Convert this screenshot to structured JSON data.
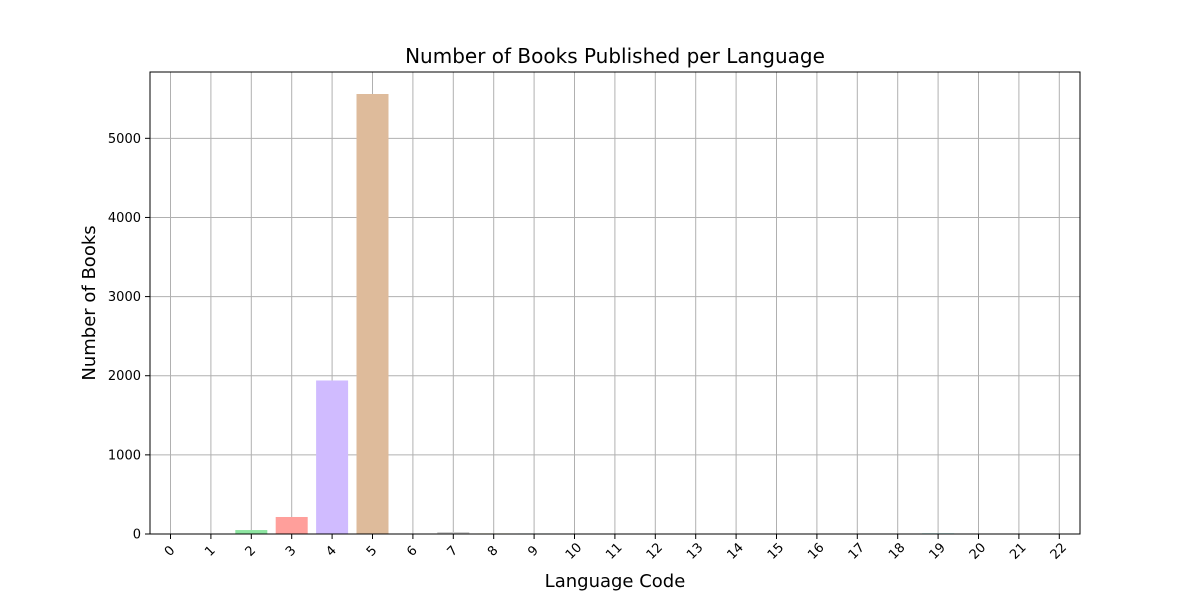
{
  "chart_data": {
    "type": "bar",
    "title": "Number of Books Published per Language",
    "xlabel": "Language Code",
    "ylabel": "Number of Books",
    "categories": [
      "0",
      "1",
      "2",
      "3",
      "4",
      "5",
      "6",
      "7",
      "8",
      "9",
      "10",
      "11",
      "12",
      "13",
      "14",
      "15",
      "16",
      "17",
      "18",
      "19",
      "20",
      "21",
      "22"
    ],
    "values": [
      1,
      1,
      50,
      215,
      1940,
      5560,
      2,
      25,
      7,
      7,
      1,
      1,
      3,
      1,
      1,
      1,
      3,
      1,
      1,
      10,
      1,
      1,
      1
    ],
    "colors": [
      "#a1c9f4",
      "#ffb482",
      "#8de5a1",
      "#ff9f9b",
      "#d0bbff",
      "#debb9b",
      "#fab0e4",
      "#cfcfcf",
      "#fffea3",
      "#b9f2f0",
      "#a1c9f4",
      "#ffb482",
      "#8de5a1",
      "#ff9f9b",
      "#d0bbff",
      "#debb9b",
      "#fab0e4",
      "#cfcfcf",
      "#fffea3",
      "#b9f2f0",
      "#a1c9f4",
      "#ffb482",
      "#8de5a1"
    ],
    "yticks": [
      0,
      1000,
      2000,
      3000,
      4000,
      5000
    ],
    "ylim": [
      0,
      5838
    ],
    "grid": true,
    "legend": "none"
  }
}
